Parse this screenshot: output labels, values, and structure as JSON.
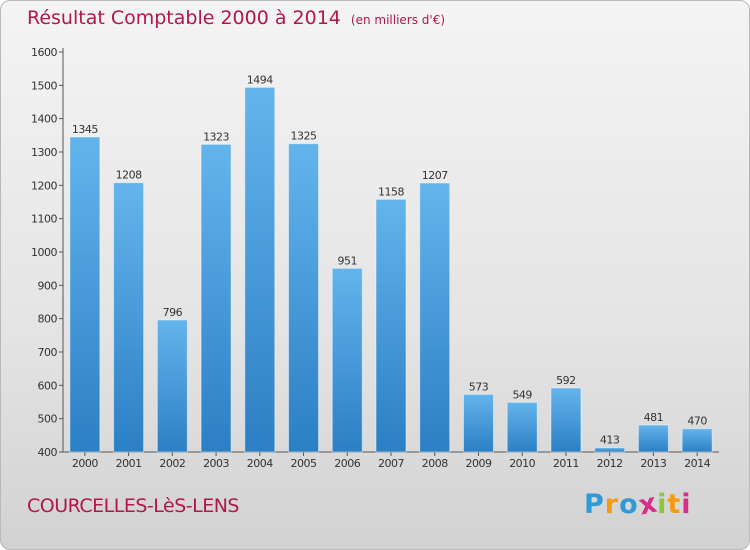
{
  "header": {
    "title": "Résultat Comptable 2000 à 2014",
    "subtitle": "(en milliers d'€)"
  },
  "footer": {
    "town": "COURCELLES-LèS-LENS",
    "logo": {
      "letters": [
        "P",
        "r",
        "o",
        "x",
        "i",
        "t",
        "i"
      ],
      "colors": [
        "#2e9ad8",
        "#f39c12",
        "#2e9ad8",
        "#d62d8b",
        "#8cc63f",
        "#f39c12",
        "#d62d8b"
      ]
    }
  },
  "colors": {
    "bar_top": "#64b4ec",
    "bar_bottom": "#2b7fc4",
    "title": "#b0174a"
  },
  "chart_data": {
    "type": "bar",
    "categories": [
      "2000",
      "2001",
      "2002",
      "2003",
      "2004",
      "2005",
      "2006",
      "2007",
      "2008",
      "2009",
      "2010",
      "2011",
      "2012",
      "2013",
      "2014"
    ],
    "values": [
      1345,
      1208,
      796,
      1323,
      1494,
      1325,
      951,
      1158,
      1207,
      573,
      549,
      592,
      413,
      481,
      470
    ],
    "title": "Résultat Comptable 2000 à 2014",
    "xlabel": "",
    "ylabel": "",
    "ylim": [
      400,
      1600
    ],
    "yticks": [
      400,
      500,
      600,
      700,
      800,
      900,
      1000,
      1100,
      1200,
      1300,
      1400,
      1500,
      1600
    ],
    "grid": false,
    "data_labels": true
  }
}
